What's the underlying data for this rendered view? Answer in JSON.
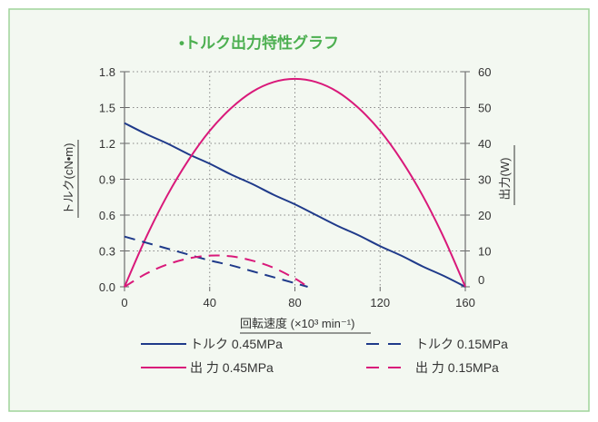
{
  "chart_data": {
    "type": "line",
    "title": "•トルク出力特性グラフ",
    "xlabel": "回転速度 (×10³ min⁻¹)",
    "ylabel": "トルク(cN•m)",
    "y2label": "出力(W)",
    "xlim": [
      0,
      160
    ],
    "ylim": [
      0,
      1.8
    ],
    "y2lim": [
      0,
      60
    ],
    "xticks": [
      "0",
      "40",
      "80",
      "120",
      "160"
    ],
    "yticks": [
      "0.0",
      "0.3",
      "0.6",
      "0.9",
      "1.2",
      "1.5",
      "1.8"
    ],
    "y2ticks": [
      "0",
      "10",
      "20",
      "30",
      "40",
      "50",
      "60"
    ],
    "grid": true,
    "legend_placement": "bottom",
    "series": [
      {
        "name": "トルク 0.45MPa",
        "axis": "left",
        "style": "solid",
        "color": "#1f3a8a",
        "x": [
          0,
          10,
          20,
          30,
          40,
          50,
          60,
          70,
          80,
          90,
          100,
          110,
          120,
          130,
          140,
          150,
          160
        ],
        "y": [
          1.37,
          1.28,
          1.2,
          1.11,
          1.03,
          0.94,
          0.86,
          0.77,
          0.69,
          0.6,
          0.51,
          0.43,
          0.34,
          0.26,
          0.17,
          0.09,
          0
        ]
      },
      {
        "name": "出 力 0.45MPa",
        "axis": "right",
        "style": "solid",
        "color": "#d9197a",
        "x": [
          0,
          10,
          20,
          30,
          40,
          50,
          60,
          70,
          80,
          90,
          100,
          110,
          120,
          130,
          140,
          150,
          160
        ],
        "y": [
          0,
          13.6,
          25.4,
          35.3,
          43.5,
          49.8,
          54.4,
          57.1,
          58,
          57.1,
          54.4,
          49.8,
          43.5,
          35.3,
          25.4,
          13.6,
          0
        ]
      },
      {
        "name": "トルク 0.15MPa",
        "axis": "left",
        "style": "dashed",
        "color": "#1f3a8a",
        "x": [
          0,
          10,
          20,
          30,
          40,
          50,
          60,
          70,
          80,
          86
        ],
        "y": [
          0.42,
          0.37,
          0.32,
          0.27,
          0.22,
          0.18,
          0.13,
          0.08,
          0.03,
          0
        ]
      },
      {
        "name": "出 力 0.15MPa",
        "axis": "right",
        "style": "dashed",
        "color": "#d9197a",
        "x": [
          0,
          10,
          20,
          30,
          40,
          50,
          60,
          70,
          80,
          86
        ],
        "y": [
          0,
          3.6,
          6.2,
          7.9,
          8.7,
          8.5,
          7.3,
          5.3,
          2.3,
          0
        ]
      }
    ]
  },
  "colors": {
    "panel_bg": "#f3f8f1",
    "panel_border": "#9fd49a",
    "title": "#4caf50"
  }
}
